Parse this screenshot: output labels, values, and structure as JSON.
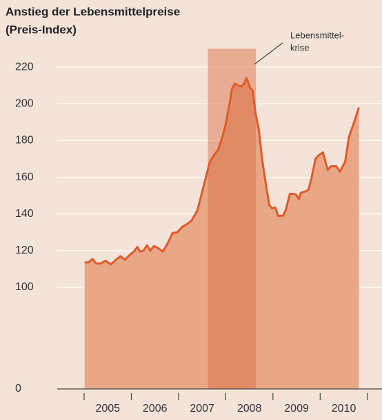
{
  "chart_data": {
    "type": "area",
    "title": [
      "Anstieg der Lebensmittelpreise",
      "(Preis-Index)"
    ],
    "annotation": [
      "Lebensmittel-",
      "krise"
    ],
    "crisis_span": [
      2007.62,
      2008.64
    ],
    "crisis_color": "#d9683f",
    "x": [
      2005.01,
      2005.09,
      2005.18,
      2005.25,
      2005.35,
      2005.45,
      2005.57,
      2005.67,
      2005.77,
      2005.86,
      2005.96,
      2006.05,
      2006.13,
      2006.18,
      2006.26,
      2006.33,
      2006.4,
      2006.48,
      2006.56,
      2006.67,
      2006.77,
      2006.87,
      2006.97,
      2007.08,
      2007.18,
      2007.28,
      2007.4,
      2007.5,
      2007.59,
      2007.66,
      2007.75,
      2007.84,
      2007.93,
      2008.0,
      2008.08,
      2008.13,
      2008.19,
      2008.26,
      2008.33,
      2008.38,
      2008.44,
      2008.51,
      2008.57,
      2008.63,
      2008.7,
      2008.77,
      2008.85,
      2008.92,
      2008.98,
      2009.05,
      2009.11,
      2009.21,
      2009.27,
      2009.36,
      2009.43,
      2009.49,
      2009.55,
      2009.59,
      2009.66,
      2009.75,
      2009.82,
      2009.9,
      2009.97,
      2010.06,
      2010.16,
      2010.23,
      2010.34,
      2010.42,
      2010.53,
      2010.61,
      2010.72,
      2010.82
    ],
    "series": [
      {
        "color": "#e05a2a",
        "fill": "#e8a888",
        "values": [
          113.6,
          113.6,
          115.5,
          113,
          113,
          114.5,
          112.5,
          115,
          117,
          115,
          117.5,
          119.5,
          122,
          119.5,
          120,
          123,
          120,
          122.5,
          121.5,
          119.5,
          124,
          129.5,
          130,
          133,
          134.5,
          136.5,
          142,
          152,
          161,
          168,
          172,
          175,
          182,
          189,
          200,
          208,
          211,
          210,
          209.5,
          210.5,
          214,
          209,
          207,
          195,
          186,
          170,
          156,
          145,
          143,
          143.5,
          139,
          139,
          142,
          151,
          151,
          150.5,
          148,
          151.5,
          152,
          153,
          160,
          170,
          172,
          173.5,
          164,
          166,
          166,
          163,
          168.5,
          182,
          190,
          198
        ]
      }
    ],
    "xlim": [
      2004.43,
      2011.31
    ],
    "xticks": [
      2005,
      2006,
      2007,
      2008,
      2009,
      2010,
      2011
    ],
    "categories": [
      "2005",
      "2006",
      "2007",
      "2008",
      "2009",
      "2010"
    ],
    "ylim": [
      0,
      230
    ],
    "yticks": [
      0,
      100,
      120,
      140,
      160,
      180,
      200,
      220
    ],
    "axis_break": true,
    "grid": true
  }
}
